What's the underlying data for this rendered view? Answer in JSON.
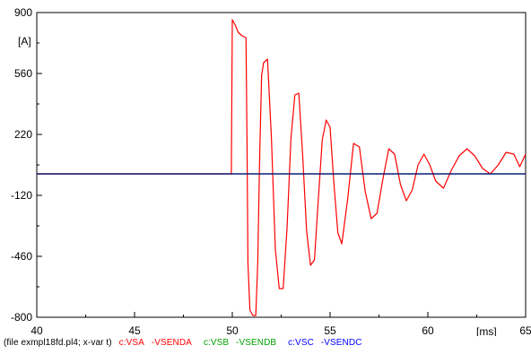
{
  "chart_data": {
    "type": "line",
    "xlabel": "[ms]",
    "ylabel": "[A]",
    "xlim": [
      40,
      65
    ],
    "ylim": [
      -800,
      900
    ],
    "x_ticks": [
      40,
      45,
      50,
      55,
      60,
      65
    ],
    "y_ticks": [
      900,
      560,
      220,
      -120,
      -460,
      -800
    ],
    "grid": false,
    "series": [
      {
        "name": "c:VSA -VSENDA",
        "color": "#ff0000",
        "x": [
          40,
          49.95,
          50,
          50.15,
          50.3,
          50.5,
          50.7,
          50.75,
          50.8,
          50.9,
          51.05,
          51.2,
          51.3,
          51.4,
          51.5,
          51.6,
          51.8,
          52.0,
          52.2,
          52.4,
          52.6,
          52.8,
          53.0,
          53.2,
          53.4,
          53.6,
          53.8,
          54.0,
          54.2,
          54.4,
          54.6,
          54.8,
          55.0,
          55.2,
          55.4,
          55.6,
          55.9,
          56.2,
          56.5,
          56.8,
          57.1,
          57.4,
          57.7,
          58.0,
          58.3,
          58.6,
          58.9,
          59.2,
          59.5,
          59.8,
          60.1,
          60.4,
          60.8,
          61.2,
          61.6,
          62.0,
          62.4,
          62.8,
          63.2,
          63.6,
          64.0,
          64.4,
          64.7,
          65
        ],
        "y": [
          0,
          0,
          860,
          830,
          790,
          770,
          760,
          200,
          -500,
          -760,
          -790,
          -790,
          -500,
          100,
          550,
          620,
          640,
          200,
          -420,
          -640,
          -640,
          -300,
          200,
          440,
          450,
          100,
          -320,
          -510,
          -480,
          -140,
          190,
          300,
          260,
          -60,
          -330,
          -390,
          -140,
          170,
          150,
          -100,
          -250,
          -220,
          -30,
          140,
          110,
          -60,
          -150,
          -90,
          50,
          110,
          50,
          -40,
          -80,
          20,
          100,
          140,
          100,
          30,
          0,
          50,
          120,
          110,
          40,
          110
        ]
      },
      {
        "name": "c:VSB -VSENDB",
        "color": "#00a000",
        "x": [
          40,
          65
        ],
        "y": [
          0,
          0
        ]
      },
      {
        "name": "c:VSC -VSENDC",
        "color": "#0000ff",
        "x": [
          40,
          65
        ],
        "y": [
          0,
          0
        ]
      }
    ]
  },
  "footer": {
    "file_label": "(file exmpl18fd.pl4; x-var t)",
    "legend": [
      {
        "name": "c:VSA",
        "suffix": "-VSENDA",
        "color": "#ff0000"
      },
      {
        "name": "c:VSB",
        "suffix": "-VSENDB",
        "color": "#00a000"
      },
      {
        "name": "c:VSC",
        "suffix": "-VSENDC",
        "color": "#0000ff"
      }
    ]
  },
  "colors": {
    "axis": "#000000",
    "overlay_line": "#000080"
  }
}
